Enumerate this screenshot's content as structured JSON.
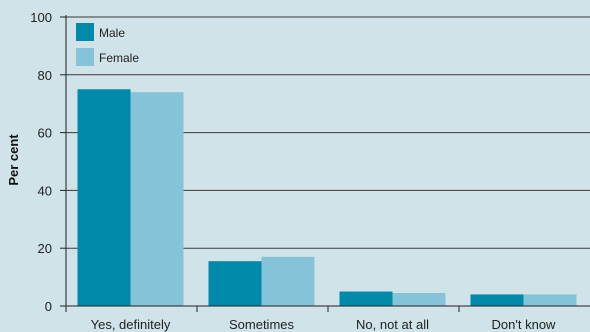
{
  "chart_data": {
    "type": "bar",
    "title": "",
    "xlabel": "",
    "ylabel": "Per cent",
    "ylim": [
      0,
      100
    ],
    "yticks": [
      0,
      20,
      40,
      60,
      80,
      100
    ],
    "categories": [
      "Yes, definitely",
      "Sometimes",
      "No, not at all",
      "Don't know"
    ],
    "series": [
      {
        "name": "Male",
        "color": "#0089a8",
        "values": [
          75,
          15.5,
          5,
          4
        ]
      },
      {
        "name": "Female",
        "color": "#85c3d8",
        "values": [
          74,
          17,
          4.5,
          4
        ]
      }
    ],
    "grid": true,
    "legend_position": "top-left"
  }
}
